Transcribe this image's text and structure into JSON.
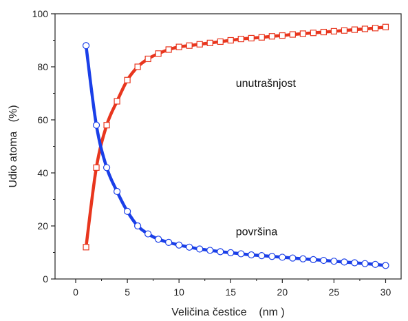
{
  "chart_data": {
    "type": "line",
    "xlabel": "Veličina čestice    (nm )",
    "ylabel": "Udio atoma   (%)",
    "xlim": [
      -2,
      31.5
    ],
    "ylim": [
      0,
      100
    ],
    "xticks": [
      0,
      5,
      10,
      15,
      20,
      25,
      30
    ],
    "yticks": [
      0,
      20,
      40,
      60,
      80,
      100
    ],
    "x": [
      1,
      2,
      3,
      4,
      5,
      6,
      7,
      8,
      9,
      10,
      11,
      12,
      13,
      14,
      15,
      16,
      17,
      18,
      19,
      20,
      21,
      22,
      23,
      24,
      25,
      26,
      27,
      28,
      29,
      30
    ],
    "series": [
      {
        "key": "interior",
        "color": "#e8361e",
        "marker": "square",
        "values": [
          12,
          42,
          58,
          67,
          75,
          80,
          83,
          85,
          86.5,
          87.5,
          88,
          88.5,
          89,
          89.5,
          90,
          90.5,
          90.8,
          91.1,
          91.5,
          91.8,
          92.2,
          92.5,
          92.8,
          93.1,
          93.4,
          93.7,
          94,
          94.3,
          94.6,
          95
        ]
      },
      {
        "key": "surface",
        "color": "#1a3fe8",
        "marker": "circle",
        "values": [
          88,
          58,
          42,
          33,
          25.5,
          20,
          17,
          15,
          13.8,
          12.8,
          12,
          11.3,
          10.8,
          10.3,
          9.9,
          9.5,
          9.1,
          8.8,
          8.5,
          8.2,
          7.9,
          7.6,
          7.3,
          7,
          6.7,
          6.4,
          6.1,
          5.8,
          5.5,
          5.1
        ]
      }
    ],
    "annotations": [
      {
        "text": "unutrašnjost",
        "x": 15.5,
        "y": 72.5
      },
      {
        "text": "površina",
        "x": 15.5,
        "y": 16.5
      }
    ]
  }
}
